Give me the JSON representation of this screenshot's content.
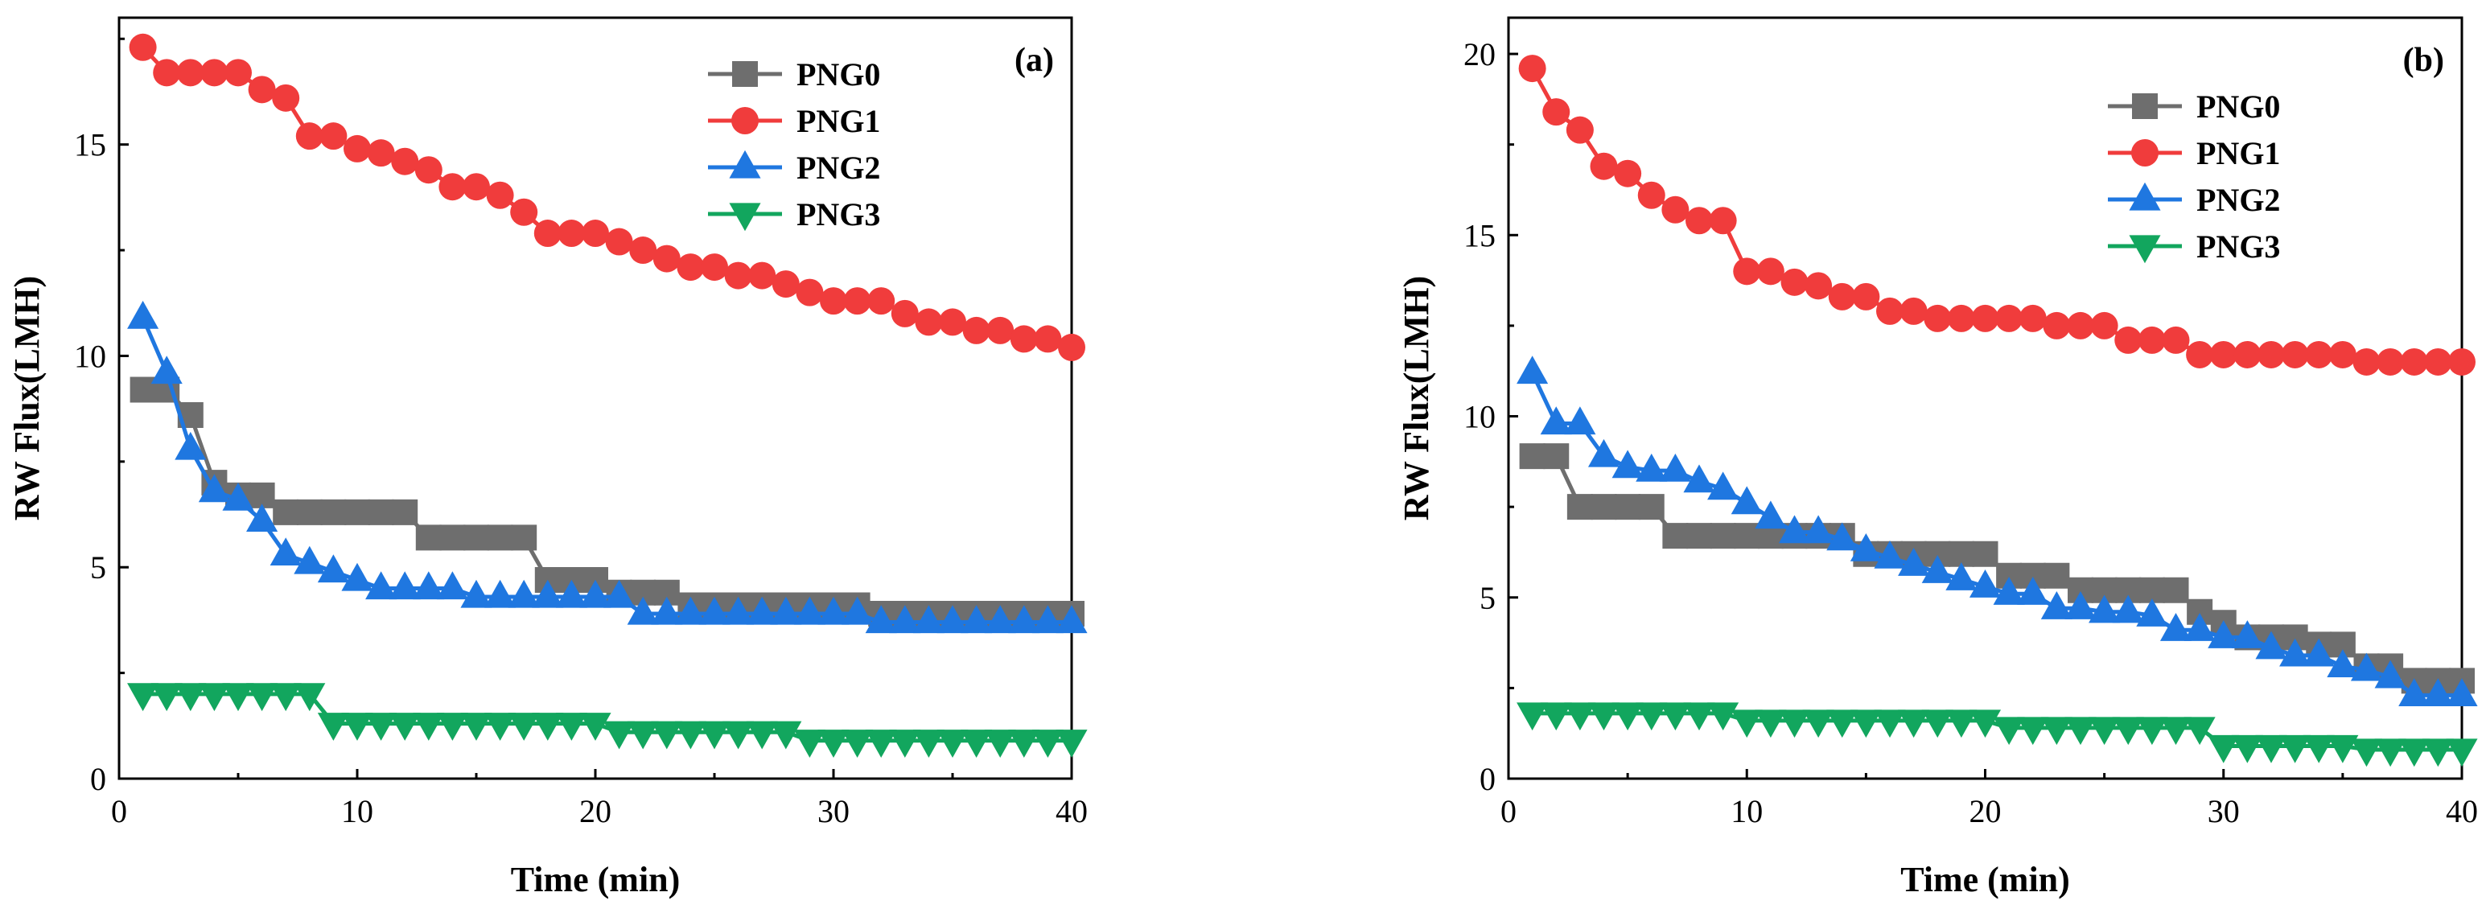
{
  "chart_data": [
    {
      "type": "line",
      "panel": "(a)",
      "xlabel": "Time (min)",
      "ylabel": "RW Flux(LMH)",
      "xlim": [
        0,
        40
      ],
      "ylim": [
        0,
        18
      ],
      "xticks": [
        0,
        10,
        20,
        30,
        40
      ],
      "yticks": [
        0,
        5,
        10,
        15
      ],
      "legend_position": "top-right",
      "series": [
        {
          "name": "PNG0",
          "color": "#6e6e6e",
          "marker": "square",
          "x": [
            1,
            2,
            3,
            4,
            5,
            6,
            7,
            8,
            9,
            10,
            11,
            12,
            13,
            14,
            15,
            16,
            17,
            18,
            19,
            20,
            21,
            22,
            23,
            24,
            25,
            26,
            27,
            28,
            29,
            30,
            31,
            32,
            33,
            34,
            35,
            36,
            37,
            38,
            39,
            40
          ],
          "y": [
            9.2,
            9.2,
            8.6,
            7.0,
            6.7,
            6.7,
            6.3,
            6.3,
            6.3,
            6.3,
            6.3,
            6.3,
            5.7,
            5.7,
            5.7,
            5.7,
            5.7,
            4.7,
            4.7,
            4.7,
            4.4,
            4.4,
            4.4,
            4.1,
            4.1,
            4.1,
            4.1,
            4.1,
            4.1,
            4.1,
            4.1,
            3.9,
            3.9,
            3.9,
            3.9,
            3.9,
            3.9,
            3.9,
            3.9,
            3.9
          ]
        },
        {
          "name": "PNG1",
          "color": "#f03c3c",
          "marker": "circle",
          "x": [
            1,
            2,
            3,
            4,
            5,
            6,
            7,
            8,
            9,
            10,
            11,
            12,
            13,
            14,
            15,
            16,
            17,
            18,
            19,
            20,
            21,
            22,
            23,
            24,
            25,
            26,
            27,
            28,
            29,
            30,
            31,
            32,
            33,
            34,
            35,
            36,
            37,
            38,
            39,
            40
          ],
          "y": [
            17.3,
            16.7,
            16.7,
            16.7,
            16.7,
            16.3,
            16.1,
            15.2,
            15.2,
            14.9,
            14.8,
            14.6,
            14.4,
            14.0,
            14.0,
            13.8,
            13.4,
            12.9,
            12.9,
            12.9,
            12.7,
            12.5,
            12.3,
            12.1,
            12.1,
            11.9,
            11.9,
            11.7,
            11.5,
            11.3,
            11.3,
            11.3,
            11.0,
            10.8,
            10.8,
            10.6,
            10.6,
            10.4,
            10.4,
            10.2
          ]
        },
        {
          "name": "PNG2",
          "color": "#1f77e0",
          "marker": "triangle-up",
          "x": [
            1,
            2,
            3,
            4,
            5,
            6,
            7,
            8,
            9,
            10,
            11,
            12,
            13,
            14,
            15,
            16,
            17,
            18,
            19,
            20,
            21,
            22,
            23,
            24,
            25,
            26,
            27,
            28,
            29,
            30,
            31,
            32,
            33,
            34,
            35,
            36,
            37,
            38,
            39,
            40
          ],
          "y": [
            10.9,
            9.6,
            7.8,
            6.8,
            6.6,
            6.1,
            5.3,
            5.1,
            4.9,
            4.7,
            4.5,
            4.5,
            4.5,
            4.5,
            4.3,
            4.3,
            4.3,
            4.3,
            4.3,
            4.3,
            4.3,
            3.9,
            3.9,
            3.9,
            3.9,
            3.9,
            3.9,
            3.9,
            3.9,
            3.9,
            3.9,
            3.7,
            3.7,
            3.7,
            3.7,
            3.7,
            3.7,
            3.7,
            3.7,
            3.7
          ]
        },
        {
          "name": "PNG3",
          "color": "#12a65e",
          "marker": "triangle-down",
          "x": [
            1,
            2,
            3,
            4,
            5,
            6,
            7,
            8,
            9,
            10,
            11,
            12,
            13,
            14,
            15,
            16,
            17,
            18,
            19,
            20,
            21,
            22,
            23,
            24,
            25,
            26,
            27,
            28,
            29,
            30,
            31,
            32,
            33,
            34,
            35,
            36,
            37,
            38,
            39,
            40
          ],
          "y": [
            2.0,
            2.0,
            2.0,
            2.0,
            2.0,
            2.0,
            2.0,
            2.0,
            1.3,
            1.3,
            1.3,
            1.3,
            1.3,
            1.3,
            1.3,
            1.3,
            1.3,
            1.3,
            1.3,
            1.3,
            1.1,
            1.1,
            1.1,
            1.1,
            1.1,
            1.1,
            1.1,
            1.1,
            0.9,
            0.9,
            0.9,
            0.9,
            0.9,
            0.9,
            0.9,
            0.9,
            0.9,
            0.9,
            0.9,
            0.9
          ]
        }
      ]
    },
    {
      "type": "line",
      "panel": "(b)",
      "xlabel": "Time (min)",
      "ylabel": "RW Flux(LMH)",
      "xlim": [
        0,
        40
      ],
      "ylim": [
        0,
        21
      ],
      "xticks": [
        0,
        10,
        20,
        30,
        40
      ],
      "yticks": [
        0,
        5,
        10,
        15,
        20
      ],
      "legend_position": "top-right",
      "series": [
        {
          "name": "PNG0",
          "color": "#6e6e6e",
          "marker": "square",
          "x": [
            1,
            2,
            3,
            4,
            5,
            6,
            7,
            8,
            9,
            10,
            11,
            12,
            13,
            14,
            15,
            16,
            17,
            18,
            19,
            20,
            21,
            22,
            23,
            24,
            25,
            26,
            27,
            28,
            29,
            30,
            31,
            32,
            33,
            34,
            35,
            36,
            37,
            38,
            39,
            40
          ],
          "y": [
            8.9,
            8.9,
            7.5,
            7.5,
            7.5,
            7.5,
            6.7,
            6.7,
            6.7,
            6.7,
            6.7,
            6.7,
            6.7,
            6.7,
            6.2,
            6.2,
            6.2,
            6.2,
            6.2,
            6.2,
            5.6,
            5.6,
            5.6,
            5.2,
            5.2,
            5.2,
            5.2,
            5.2,
            4.6,
            4.3,
            3.9,
            3.9,
            3.9,
            3.7,
            3.7,
            3.1,
            3.1,
            2.7,
            2.7,
            2.7
          ]
        },
        {
          "name": "PNG1",
          "color": "#f03c3c",
          "marker": "circle",
          "x": [
            1,
            2,
            3,
            4,
            5,
            6,
            7,
            8,
            9,
            10,
            11,
            12,
            13,
            14,
            15,
            16,
            17,
            18,
            19,
            20,
            21,
            22,
            23,
            24,
            25,
            26,
            27,
            28,
            29,
            30,
            31,
            32,
            33,
            34,
            35,
            36,
            37,
            38,
            39,
            40
          ],
          "y": [
            19.6,
            18.4,
            17.9,
            16.9,
            16.7,
            16.1,
            15.7,
            15.4,
            15.4,
            14.0,
            14.0,
            13.7,
            13.6,
            13.3,
            13.3,
            12.9,
            12.9,
            12.7,
            12.7,
            12.7,
            12.7,
            12.7,
            12.5,
            12.5,
            12.5,
            12.1,
            12.1,
            12.1,
            11.7,
            11.7,
            11.7,
            11.7,
            11.7,
            11.7,
            11.7,
            11.5,
            11.5,
            11.5,
            11.5,
            11.5
          ]
        },
        {
          "name": "PNG2",
          "color": "#1f77e0",
          "marker": "triangle-up",
          "x": [
            1,
            2,
            3,
            4,
            5,
            6,
            7,
            8,
            9,
            10,
            11,
            12,
            13,
            14,
            15,
            16,
            17,
            18,
            19,
            20,
            21,
            22,
            23,
            24,
            25,
            26,
            27,
            28,
            29,
            30,
            31,
            32,
            33,
            34,
            35,
            36,
            37,
            38,
            39,
            40
          ],
          "y": [
            11.2,
            9.8,
            9.8,
            8.9,
            8.6,
            8.5,
            8.5,
            8.2,
            8.0,
            7.6,
            7.2,
            6.8,
            6.8,
            6.6,
            6.3,
            6.1,
            5.9,
            5.7,
            5.5,
            5.3,
            5.1,
            5.1,
            4.7,
            4.7,
            4.6,
            4.6,
            4.5,
            4.1,
            4.1,
            3.9,
            3.9,
            3.6,
            3.4,
            3.4,
            3.1,
            3.0,
            2.8,
            2.3,
            2.3,
            2.3
          ]
        },
        {
          "name": "PNG3",
          "color": "#12a65e",
          "marker": "triangle-down",
          "x": [
            1,
            2,
            3,
            4,
            5,
            6,
            7,
            8,
            9,
            10,
            11,
            12,
            13,
            14,
            15,
            16,
            17,
            18,
            19,
            20,
            21,
            22,
            23,
            24,
            25,
            26,
            27,
            28,
            29,
            30,
            31,
            32,
            33,
            34,
            35,
            36,
            37,
            38,
            39,
            40
          ],
          "y": [
            1.8,
            1.8,
            1.8,
            1.8,
            1.8,
            1.8,
            1.8,
            1.8,
            1.8,
            1.6,
            1.6,
            1.6,
            1.6,
            1.6,
            1.6,
            1.6,
            1.6,
            1.6,
            1.6,
            1.6,
            1.4,
            1.4,
            1.4,
            1.4,
            1.4,
            1.4,
            1.4,
            1.4,
            1.4,
            0.9,
            0.9,
            0.9,
            0.9,
            0.9,
            0.9,
            0.8,
            0.8,
            0.8,
            0.8,
            0.8
          ]
        }
      ]
    }
  ]
}
